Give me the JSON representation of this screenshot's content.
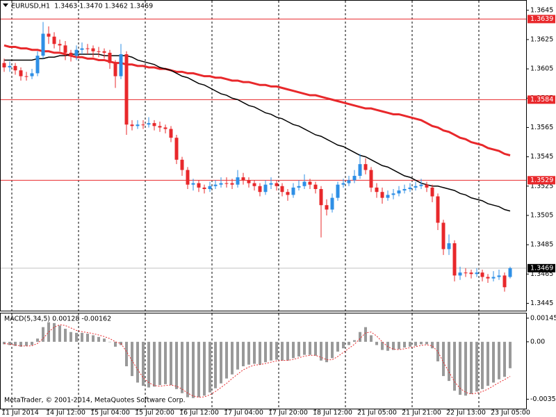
{
  "chart_data": [
    {
      "type": "candlestick",
      "title": "EURUSD,H1  1.3463 1.3470 1.3462 1.3469",
      "categories": [
        "11 Jul 2014",
        null,
        null,
        null,
        null,
        null,
        null,
        null,
        "14 Jul 12:00",
        null,
        null,
        null,
        null,
        null,
        null,
        null,
        "15 Jul 04:00",
        null,
        null,
        null,
        null,
        null,
        null,
        null,
        "15 Jul 20:00",
        null,
        null,
        null,
        null,
        null,
        null,
        null,
        "16 Jul 12:00",
        null,
        null,
        null,
        null,
        null,
        null,
        null,
        "17 Jul 04:00",
        null,
        null,
        null,
        null,
        null,
        null,
        null,
        "17 Jul 20:00",
        null,
        null,
        null,
        null,
        null,
        null,
        null,
        "18 Jul 12:00",
        null,
        null,
        null,
        null,
        null,
        null,
        null,
        "21 Jul 05:00",
        null,
        null,
        null,
        null,
        null,
        null,
        null,
        "21 Jul 21:00",
        null,
        null,
        null,
        null,
        null,
        null,
        null,
        "22 Jul 13:00",
        null,
        null,
        null,
        null,
        null,
        null,
        null,
        "23 Jul 05:00",
        null,
        null,
        null
      ],
      "open": [
        1.3609,
        1.3606,
        1.3607,
        1.3604,
        1.36,
        1.36,
        1.3602,
        1.3614,
        1.3629,
        1.3627,
        1.3622,
        1.3621,
        1.3616,
        1.3614,
        1.3618,
        1.3619,
        1.3619,
        1.3617,
        1.3617,
        1.3616,
        1.3609,
        1.36,
        1.3615,
        1.3567,
        1.3566,
        1.3567,
        1.3567,
        1.3568,
        1.3566,
        1.3565,
        1.3564,
        1.3558,
        1.3543,
        1.3536,
        1.3526,
        1.3527,
        1.3524,
        1.3523,
        1.3525,
        1.3526,
        1.3527,
        1.3527,
        1.3526,
        1.3531,
        1.3529,
        1.3527,
        1.3525,
        1.3521,
        1.3526,
        1.3527,
        1.3525,
        1.3521,
        1.3519,
        1.3524,
        1.3525,
        1.3528,
        1.3526,
        1.3523,
        1.3512,
        1.3509,
        1.3517,
        1.3526,
        1.3527,
        1.3529,
        1.3532,
        1.354,
        1.3536,
        1.3524,
        1.3521,
        1.3517,
        1.3519,
        1.352,
        1.3522,
        1.3523,
        1.3524,
        1.3525,
        1.3526,
        1.3524,
        1.3518,
        1.35,
        1.3482,
        1.3486,
        1.3464,
        1.3466,
        1.3466,
        1.3465,
        1.3466,
        1.3463,
        1.3462,
        1.3463,
        1.3464,
        1.3463
      ],
      "high": [
        1.3612,
        1.361,
        1.3609,
        1.3606,
        1.3603,
        1.3605,
        1.3617,
        1.3637,
        1.3634,
        1.363,
        1.3625,
        1.3624,
        1.3618,
        1.3621,
        1.3623,
        1.3622,
        1.3621,
        1.362,
        1.3619,
        1.3618,
        1.3611,
        1.3622,
        1.3617,
        1.357,
        1.357,
        1.357,
        1.3572,
        1.357,
        1.3569,
        1.3567,
        1.3566,
        1.356,
        1.3545,
        1.3538,
        1.353,
        1.3529,
        1.3526,
        1.3528,
        1.3529,
        1.3531,
        1.3531,
        1.353,
        1.3536,
        1.3534,
        1.3531,
        1.3529,
        1.3527,
        1.3529,
        1.3531,
        1.3529,
        1.3527,
        1.3523,
        1.3527,
        1.3529,
        1.3533,
        1.353,
        1.3528,
        1.3525,
        1.3516,
        1.352,
        1.3528,
        1.353,
        1.3532,
        1.3536,
        1.3547,
        1.3544,
        1.3538,
        1.3527,
        1.3524,
        1.3522,
        1.3523,
        1.3525,
        1.3526,
        1.3527,
        1.3528,
        1.353,
        1.3528,
        1.3526,
        1.352,
        1.3502,
        1.3492,
        1.3488,
        1.347,
        1.3469,
        1.3468,
        1.3469,
        1.3468,
        1.3465,
        1.3467,
        1.3468,
        1.3466,
        1.347
      ],
      "low": [
        1.3603,
        1.3603,
        1.3601,
        1.3597,
        1.3597,
        1.3598,
        1.36,
        1.3612,
        1.3622,
        1.3619,
        1.3617,
        1.3611,
        1.361,
        1.3611,
        1.3615,
        1.3615,
        1.3613,
        1.3613,
        1.3612,
        1.3605,
        1.3592,
        1.3598,
        1.356,
        1.3563,
        1.3564,
        1.3564,
        1.3565,
        1.3563,
        1.3562,
        1.3561,
        1.3555,
        1.354,
        1.3532,
        1.3523,
        1.3522,
        1.3521,
        1.352,
        1.3521,
        1.3523,
        1.3524,
        1.3524,
        1.3523,
        1.3524,
        1.3526,
        1.3524,
        1.3522,
        1.3518,
        1.3519,
        1.3523,
        1.3522,
        1.3518,
        1.3515,
        1.3517,
        1.3522,
        1.3523,
        1.3523,
        1.352,
        1.349,
        1.3505,
        1.3507,
        1.3515,
        1.3524,
        1.3525,
        1.3527,
        1.353,
        1.3533,
        1.3521,
        1.3517,
        1.3513,
        1.3515,
        1.3516,
        1.3518,
        1.352,
        1.3521,
        1.3522,
        1.3523,
        1.3521,
        1.3514,
        1.3495,
        1.3478,
        1.3478,
        1.346,
        1.3461,
        1.3463,
        1.3462,
        1.3463,
        1.346,
        1.3459,
        1.346,
        1.3461,
        1.3453,
        1.3462
      ],
      "close": [
        1.3606,
        1.3607,
        1.3604,
        1.36,
        1.36,
        1.3602,
        1.3614,
        1.3629,
        1.3627,
        1.3622,
        1.3621,
        1.3616,
        1.3614,
        1.3618,
        1.3619,
        1.3619,
        1.3617,
        1.3617,
        1.3616,
        1.3609,
        1.36,
        1.3615,
        1.3567,
        1.3566,
        1.3567,
        1.3567,
        1.3568,
        1.3566,
        1.3565,
        1.3564,
        1.3558,
        1.3543,
        1.3536,
        1.3526,
        1.3527,
        1.3524,
        1.3523,
        1.3525,
        1.3526,
        1.3527,
        1.3527,
        1.3526,
        1.3531,
        1.3529,
        1.3527,
        1.3525,
        1.3521,
        1.3526,
        1.3527,
        1.3525,
        1.3521,
        1.3519,
        1.3524,
        1.3525,
        1.3528,
        1.3526,
        1.3523,
        1.3512,
        1.3509,
        1.3517,
        1.3526,
        1.3527,
        1.3529,
        1.3532,
        1.354,
        1.3536,
        1.3524,
        1.3521,
        1.3517,
        1.3519,
        1.352,
        1.3522,
        1.3523,
        1.3524,
        1.3525,
        1.3526,
        1.3524,
        1.3518,
        1.35,
        1.3482,
        1.3486,
        1.3464,
        1.3466,
        1.3466,
        1.3465,
        1.3466,
        1.3463,
        1.3462,
        1.3463,
        1.3464,
        1.3456,
        1.3469
      ],
      "up_color": "#2e8fe6",
      "down_color": "#e8282b",
      "series": [
        {
          "color": "#e8282b",
          "width": 3,
          "values": [
            1.3621,
            1.362,
            1.362,
            1.3619,
            1.3619,
            1.3618,
            1.3618,
            1.3617,
            1.3617,
            1.3616,
            1.3616,
            1.3615,
            1.3614,
            1.3613,
            1.3613,
            1.3612,
            1.3612,
            1.3611,
            1.3611,
            1.361,
            1.3609,
            1.3609,
            1.3608,
            1.3608,
            1.3607,
            1.3607,
            1.3606,
            1.3606,
            1.3605,
            1.3605,
            1.3604,
            1.3603,
            1.3603,
            1.3602,
            1.3602,
            1.3601,
            1.36,
            1.36,
            1.3599,
            1.3599,
            1.3598,
            1.3597,
            1.3597,
            1.3596,
            1.3596,
            1.3595,
            1.3594,
            1.3594,
            1.3593,
            1.3593,
            1.3592,
            1.3591,
            1.359,
            1.3589,
            1.3588,
            1.3587,
            1.3587,
            1.3586,
            1.3585,
            1.3584,
            1.3583,
            1.3582,
            1.3581,
            1.358,
            1.3579,
            1.3578,
            1.3578,
            1.3577,
            1.3576,
            1.3575,
            1.3574,
            1.3574,
            1.3573,
            1.3572,
            1.3571,
            1.357,
            1.3568,
            1.3566,
            1.3565,
            1.3563,
            1.3562,
            1.356,
            1.3558,
            1.3557,
            1.3555,
            1.3554,
            1.3553,
            1.3551,
            1.355,
            1.3549,
            1.3547,
            1.3546
          ]
        },
        {
          "color": "#000000",
          "width": 1.5,
          "values": [
            1.3611,
            1.3611,
            1.3611,
            1.3611,
            1.3611,
            1.3611,
            1.3612,
            1.3612,
            1.3613,
            1.3613,
            1.3614,
            1.3614,
            1.3615,
            1.3615,
            1.3615,
            1.3615,
            1.3615,
            1.3615,
            1.3614,
            1.3614,
            1.3614,
            1.3614,
            1.3614,
            1.3613,
            1.3611,
            1.361,
            1.3609,
            1.3608,
            1.3606,
            1.3605,
            1.3604,
            1.3602,
            1.36,
            1.3599,
            1.3597,
            1.3595,
            1.3594,
            1.3592,
            1.359,
            1.3588,
            1.3587,
            1.3585,
            1.3584,
            1.3582,
            1.358,
            1.3579,
            1.3577,
            1.3575,
            1.3574,
            1.3572,
            1.3571,
            1.3569,
            1.3567,
            1.3566,
            1.3564,
            1.3562,
            1.356,
            1.3559,
            1.3557,
            1.3555,
            1.3553,
            1.3552,
            1.355,
            1.3548,
            1.3546,
            1.3545,
            1.3543,
            1.3541,
            1.3539,
            1.3538,
            1.3536,
            1.3534,
            1.3532,
            1.3531,
            1.3529,
            1.3527,
            1.3526,
            1.3525,
            1.3525,
            1.3524,
            1.3523,
            1.3522,
            1.352,
            1.3519,
            1.3517,
            1.3516,
            1.3515,
            1.3513,
            1.3512,
            1.3511,
            1.3509,
            1.3508
          ]
        }
      ],
      "hlines": [
        1.3639,
        1.3584,
        1.3529
      ],
      "hline_color": "#e8282b",
      "last_price": 1.3469,
      "ylim": [
        1.344,
        1.3652
      ],
      "yticks": [
        1.3645,
        1.3625,
        1.3605,
        1.3585,
        1.3565,
        1.3545,
        1.3525,
        1.3505,
        1.3485,
        1.3465,
        1.3445
      ]
    },
    {
      "type": "macd",
      "title": "MACD(5,34,5) 0.00128 -0.00162",
      "annotation": "MetaTrader, © 2001-2014, MetaQuotes Software Corp.",
      "series": [
        {
          "type": "bar",
          "color": "#999999",
          "values": [
            -0.00015,
            -0.0002,
            -0.00025,
            -0.0003,
            -0.00025,
            -0.0002,
            0.0002,
            0.0009,
            0.0012,
            0.00115,
            0.001,
            0.0008,
            0.0006,
            0.00055,
            0.00055,
            0.0005,
            0.0004,
            0.0003,
            0.0002,
            0.0,
            -0.0003,
            -0.0002,
            -0.0015,
            -0.0021,
            -0.0025,
            -0.0027,
            -0.0028,
            -0.00275,
            -0.00265,
            -0.0026,
            -0.00265,
            -0.0029,
            -0.00315,
            -0.0034,
            -0.00345,
            -0.0034,
            -0.0033,
            -0.0031,
            -0.00285,
            -0.00255,
            -0.00225,
            -0.002,
            -0.0017,
            -0.0015,
            -0.0014,
            -0.00135,
            -0.0014,
            -0.00125,
            -0.00115,
            -0.0011,
            -0.00115,
            -0.00115,
            -0.001,
            -0.0009,
            -0.0008,
            -0.0008,
            -0.00085,
            -0.00115,
            -0.00125,
            -0.001,
            -0.0006,
            -0.0004,
            -0.0002,
            0.0001,
            0.0006,
            0.0009,
            0.0004,
            -0.0002,
            -0.0005,
            -0.00055,
            -0.0005,
            -0.00045,
            -0.00035,
            -0.0003,
            -0.00025,
            -0.00015,
            -0.00015,
            -0.0004,
            -0.0012,
            -0.0021,
            -0.0024,
            -0.003,
            -0.00325,
            -0.0033,
            -0.0032,
            -0.00305,
            -0.0029,
            -0.0027,
            -0.0025,
            -0.0023,
            -0.00215,
            -0.00162
          ]
        },
        {
          "type": "line",
          "color": "#e8282b",
          "values": [
            -0.0001,
            -0.00015,
            -0.0002,
            -0.00025,
            -0.00026,
            -0.00024,
            -0.0001,
            0.0002,
            0.0006,
            0.0009,
            0.00105,
            0.001,
            0.00085,
            0.0007,
            0.00062,
            0.00057,
            0.0005,
            0.00042,
            0.00032,
            0.0002,
            0.0,
            -0.0001,
            -0.0006,
            -0.00115,
            -0.0017,
            -0.0022,
            -0.0025,
            -0.00268,
            -0.00272,
            -0.00268,
            -0.00265,
            -0.00272,
            -0.0029,
            -0.00315,
            -0.00332,
            -0.0034,
            -0.00338,
            -0.00325,
            -0.00305,
            -0.0028,
            -0.00255,
            -0.00225,
            -0.00198,
            -0.00172,
            -0.00155,
            -0.00143,
            -0.0014,
            -0.00133,
            -0.00125,
            -0.00117,
            -0.00114,
            -0.00114,
            -0.00108,
            -0.00098,
            -0.00088,
            -0.00083,
            -0.00083,
            -0.00095,
            -0.0011,
            -0.0011,
            -0.0009,
            -0.00065,
            -0.0004,
            -0.00015,
            0.0002,
            0.00055,
            0.0006,
            0.00035,
            0.0,
            -0.0003,
            -0.00045,
            -0.00048,
            -0.00043,
            -0.00036,
            -0.0003,
            -0.00022,
            -0.00018,
            -0.00025,
            -0.0006,
            -0.00125,
            -0.00185,
            -0.00245,
            -0.00285,
            -0.0031,
            -0.0032,
            -0.00315,
            -0.00305,
            -0.0029,
            -0.0027,
            -0.0025,
            -0.00232,
            -0.00212
          ]
        }
      ],
      "ylim": [
        -0.0041,
        0.00174
      ],
      "yticks": [
        0.00145,
        {
          "value": 0,
          "label": "0.00"
        },
        -0.00352
      ]
    }
  ]
}
